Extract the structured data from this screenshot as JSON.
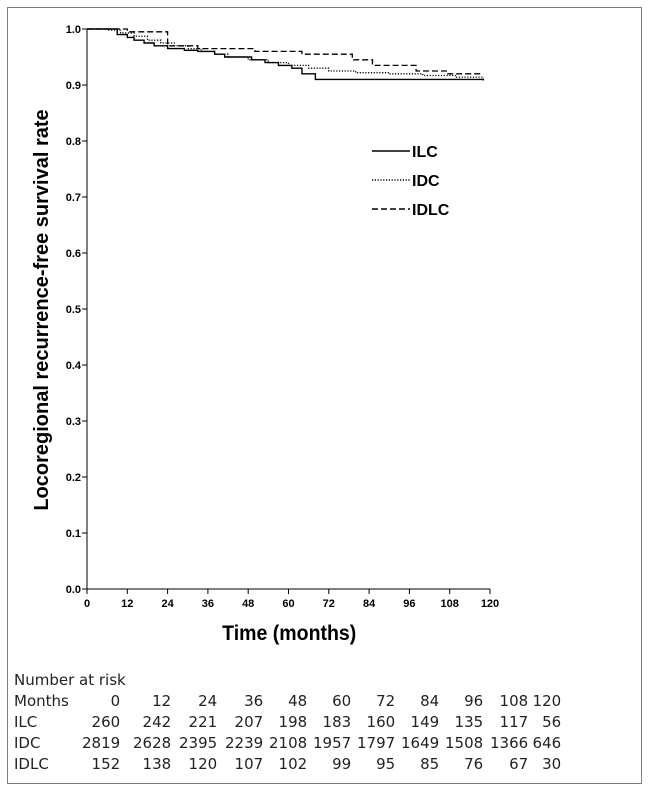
{
  "chart_data": {
    "type": "line",
    "subtype": "kaplan-meier step curves",
    "title": "",
    "xlabel": "Time (months)",
    "ylabel": "Locoregional recurrence-free survival rate",
    "xlim": [
      0,
      120
    ],
    "ylim": [
      0,
      1.0
    ],
    "x_ticks": [
      "0",
      "12",
      "24",
      "36",
      "48",
      "60",
      "72",
      "84",
      "96",
      "108",
      "120"
    ],
    "y_ticks": [
      "0.0",
      "0.1",
      "0.2",
      "0.3",
      "0.4",
      "0.5",
      "0.6",
      "0.7",
      "0.8",
      "0.9",
      "1.0"
    ],
    "grid": false,
    "legend_position": "top-right",
    "series": [
      {
        "name": "ILC",
        "line_style": "solid",
        "points": [
          [
            0,
            1.0
          ],
          [
            8,
            1.0
          ],
          [
            9,
            0.99
          ],
          [
            12,
            0.985
          ],
          [
            14,
            0.98
          ],
          [
            17,
            0.975
          ],
          [
            20,
            0.97
          ],
          [
            24,
            0.965
          ],
          [
            29,
            0.962
          ],
          [
            33,
            0.96
          ],
          [
            38,
            0.955
          ],
          [
            41,
            0.95
          ],
          [
            49,
            0.945
          ],
          [
            53,
            0.94
          ],
          [
            57,
            0.935
          ],
          [
            61,
            0.93
          ],
          [
            64,
            0.92
          ],
          [
            66,
            0.92
          ],
          [
            68,
            0.91
          ],
          [
            118,
            0.908
          ]
        ]
      },
      {
        "name": "IDC",
        "line_style": "dotted",
        "points": [
          [
            0,
            1.0
          ],
          [
            6,
            0.998
          ],
          [
            10,
            0.993
          ],
          [
            14,
            0.987
          ],
          [
            18,
            0.98
          ],
          [
            22,
            0.975
          ],
          [
            26,
            0.97
          ],
          [
            30,
            0.965
          ],
          [
            34,
            0.96
          ],
          [
            38,
            0.955
          ],
          [
            42,
            0.95
          ],
          [
            48,
            0.945
          ],
          [
            54,
            0.94
          ],
          [
            60,
            0.935
          ],
          [
            66,
            0.93
          ],
          [
            72,
            0.925
          ],
          [
            80,
            0.922
          ],
          [
            90,
            0.92
          ],
          [
            100,
            0.917
          ],
          [
            110,
            0.914
          ],
          [
            118,
            0.912
          ]
        ]
      },
      {
        "name": "IDLC",
        "line_style": "dashed",
        "points": [
          [
            0,
            1.0
          ],
          [
            10,
            1.0
          ],
          [
            12,
            0.995
          ],
          [
            20,
            0.995
          ],
          [
            24,
            0.97
          ],
          [
            31,
            0.97
          ],
          [
            33,
            0.965
          ],
          [
            47,
            0.965
          ],
          [
            50,
            0.96
          ],
          [
            62,
            0.96
          ],
          [
            64,
            0.955
          ],
          [
            77,
            0.955
          ],
          [
            79,
            0.945
          ],
          [
            84,
            0.945
          ],
          [
            85,
            0.935
          ],
          [
            96,
            0.935
          ],
          [
            98,
            0.925
          ],
          [
            105,
            0.925
          ],
          [
            107,
            0.92
          ],
          [
            118,
            0.92
          ]
        ]
      }
    ]
  },
  "risk_table": {
    "title": "Number at risk",
    "header_label": "Months",
    "months": [
      "0",
      "12",
      "24",
      "36",
      "48",
      "60",
      "72",
      "84",
      "96",
      "108",
      "120"
    ],
    "rows": [
      {
        "label": "ILC",
        "values": [
          "260",
          "242",
          "221",
          "207",
          "198",
          "183",
          "160",
          "149",
          "135",
          "117",
          "56"
        ]
      },
      {
        "label": "IDC",
        "values": [
          "2819",
          "2628",
          "2395",
          "2239",
          "2108",
          "1957",
          "1797",
          "1649",
          "1508",
          "1366",
          "646"
        ]
      },
      {
        "label": "IDLC",
        "values": [
          "152",
          "138",
          "120",
          "107",
          "102",
          "99",
          "95",
          "85",
          "76",
          "67",
          "30"
        ]
      }
    ]
  }
}
